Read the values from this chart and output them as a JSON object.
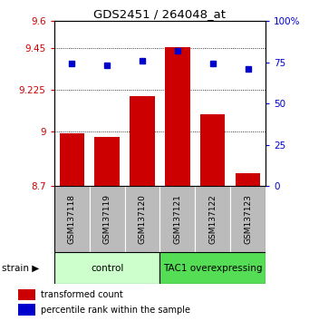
{
  "title": "GDS2451 / 264048_at",
  "samples": [
    "GSM137118",
    "GSM137119",
    "GSM137120",
    "GSM137121",
    "GSM137122",
    "GSM137123"
  ],
  "bar_values": [
    8.99,
    8.97,
    9.19,
    9.455,
    9.09,
    8.77
  ],
  "blue_values": [
    9.37,
    9.36,
    9.385,
    9.435,
    9.37,
    9.34
  ],
  "bar_color": "#cc0000",
  "blue_color": "#0000cc",
  "baseline": 8.7,
  "ylim_left": [
    8.7,
    9.6
  ],
  "yticks_left": [
    8.7,
    9.0,
    9.225,
    9.45,
    9.6
  ],
  "ytick_labels_left": [
    "8.7",
    "9",
    "9.225",
    "9.45",
    "9.6"
  ],
  "ylim_right": [
    0,
    100
  ],
  "yticks_right": [
    0,
    25,
    50,
    75,
    100
  ],
  "ytick_labels_right": [
    "0",
    "25",
    "50",
    "75",
    "100%"
  ],
  "groups": [
    {
      "label": "control",
      "samples": [
        0,
        1,
        2
      ],
      "color": "#ccffcc"
    },
    {
      "label": "TAC1 overexpressing",
      "samples": [
        3,
        4,
        5
      ],
      "color": "#55dd55"
    }
  ],
  "legend_red": "transformed count",
  "legend_blue": "percentile rank within the sample",
  "grid_yticks": [
    9.0,
    9.225,
    9.45
  ],
  "bar_width": 0.7,
  "tick_label_color_left": "#cc0000",
  "tick_label_color_right": "#0000cc",
  "bg_xtick": "#bbbbbb"
}
